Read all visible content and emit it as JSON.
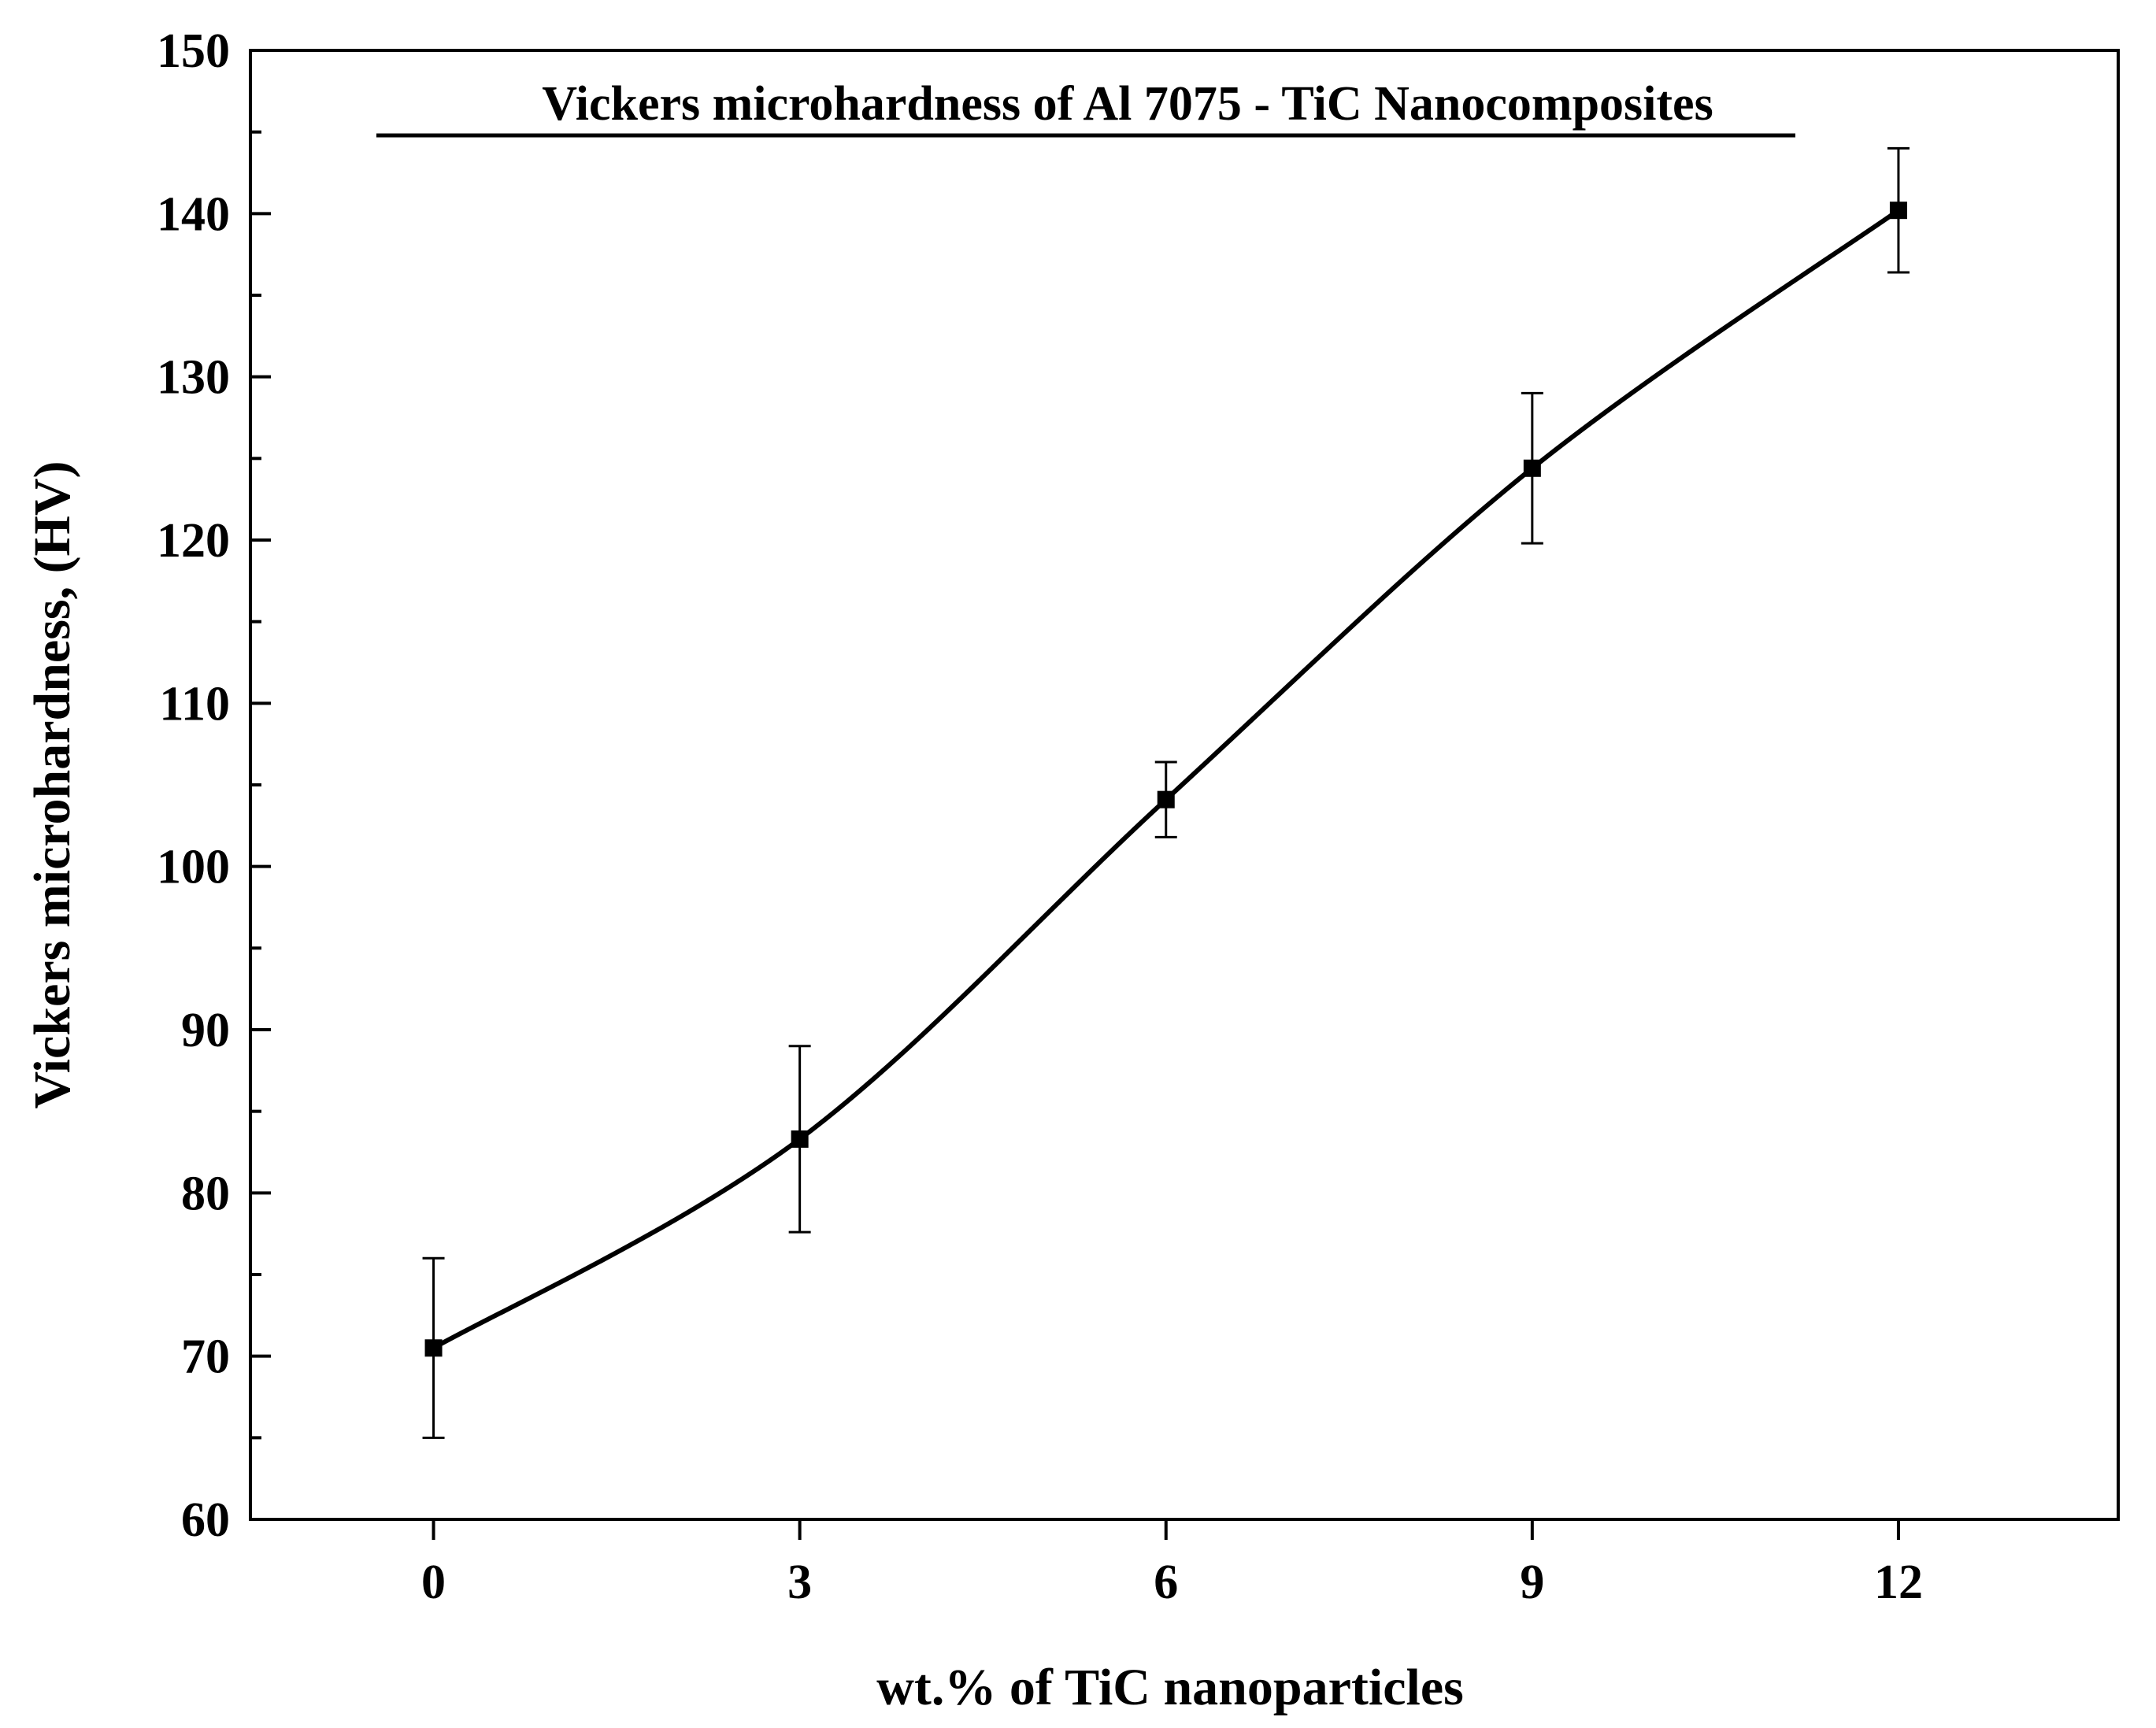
{
  "chart_data": {
    "type": "line",
    "title": "Vickers microhardness of Al 7075 - TiC Nanocomposites",
    "xlabel": "wt.% of TiC nanoparticles",
    "ylabel": "Vickers microhardness, (HV)",
    "x": [
      0,
      3,
      6,
      9,
      12
    ],
    "series": [
      {
        "name": "Vickers microhardness",
        "values": [
          70.5,
          83.3,
          104.1,
          124.4,
          140.2
        ],
        "error_low": [
          65.0,
          77.6,
          101.8,
          119.8,
          136.4
        ],
        "error_high": [
          76.0,
          89.0,
          106.4,
          129.0,
          144.0
        ],
        "marker": "square",
        "line": "smooth",
        "color": "#000000"
      }
    ],
    "xlim": [
      -1.5,
      13.8
    ],
    "ylim": [
      60,
      150
    ],
    "xticks": [
      0,
      3,
      6,
      9,
      12
    ],
    "xtick_labels": [
      "0",
      "3",
      "6",
      "9",
      "12"
    ],
    "yticks": [
      60,
      70,
      80,
      90,
      100,
      110,
      120,
      130,
      140,
      150
    ],
    "ytick_labels": [
      "60",
      "70",
      "80",
      "90",
      "100",
      "110",
      "120",
      "130",
      "140",
      "150"
    ],
    "y_minor_step": 5,
    "grid": false,
    "legend": "none"
  }
}
